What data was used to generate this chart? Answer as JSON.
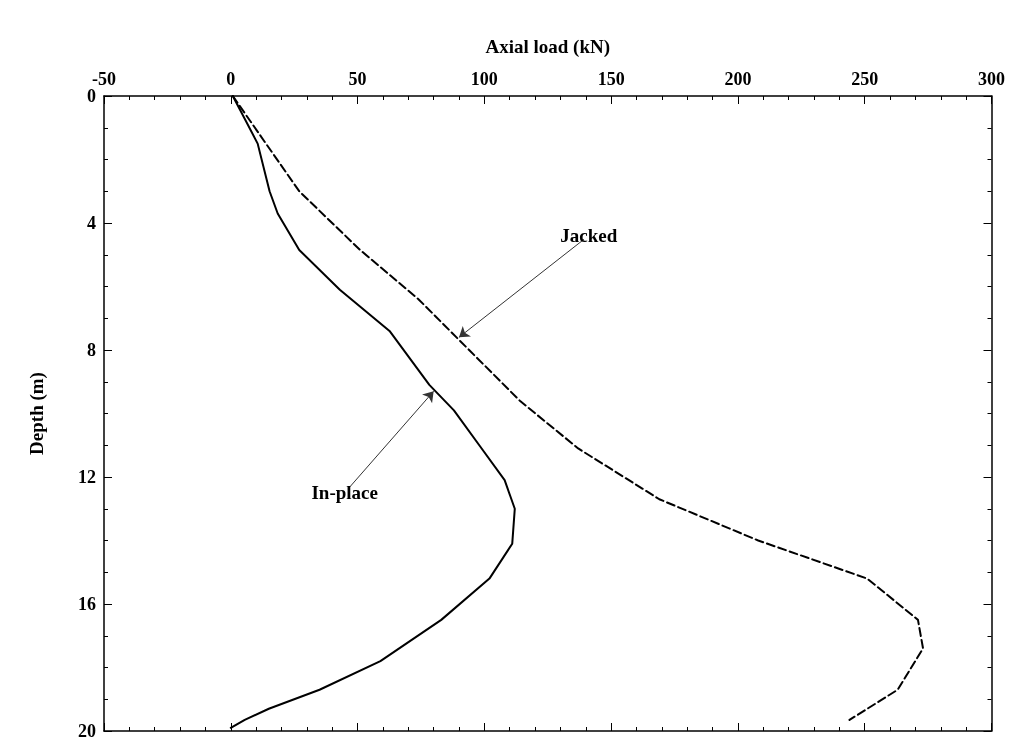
{
  "chart_data": {
    "type": "line",
    "xlabel": "Axial load (kN)",
    "ylabel": "Depth (m)",
    "xlim": [
      -50,
      300
    ],
    "xticks": [
      -50,
      0,
      50,
      100,
      150,
      200,
      250,
      300
    ],
    "ylim": [
      20,
      0
    ],
    "yticks": [
      0,
      4,
      8,
      12,
      16,
      20
    ],
    "grid": false,
    "marker": "none",
    "series": [
      {
        "color": "#000000",
        "line_style": "solid",
        "x": [
          0.8,
          10.6,
          15.3,
          18.5,
          27,
          43,
          62.6,
          78.3,
          88,
          98,
          108,
          112,
          111,
          102,
          83,
          59,
          35,
          15,
          5.5,
          0
        ],
        "values": [
          0,
          1.5,
          3,
          3.7,
          4.85,
          6.1,
          7.4,
          9.1,
          9.9,
          11,
          12.1,
          13,
          14.1,
          15.2,
          16.5,
          17.8,
          18.7,
          19.3,
          19.65,
          19.9
        ]
      },
      {
        "color": "#000000",
        "line_style": "dashed",
        "x": [
          0.8,
          13,
          27,
          51,
          74,
          94,
          114,
          137,
          169,
          208,
          251,
          271,
          273,
          263,
          244
        ],
        "values": [
          0,
          1.4,
          3,
          4.85,
          6.4,
          8,
          9.6,
          11.1,
          12.7,
          14,
          15.2,
          16.5,
          17.4,
          18.7,
          19.65
        ]
      }
    ],
    "annotations": [
      {
        "text": "Jacked",
        "x": 90,
        "y": 7.6
      },
      {
        "text": "In-place",
        "x": 80,
        "y": 9.3
      }
    ]
  }
}
